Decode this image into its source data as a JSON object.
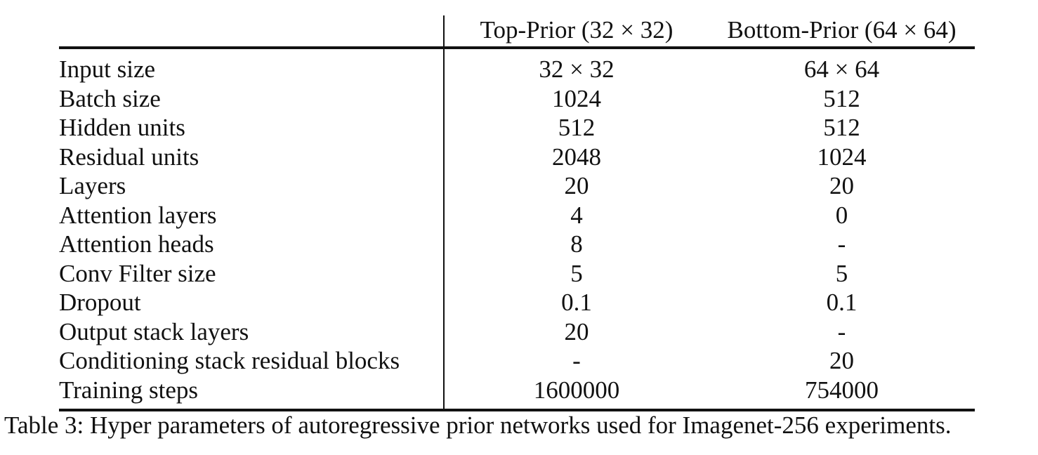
{
  "table": {
    "columns": [
      "",
      "Top-Prior (32 × 32)",
      "Bottom-Prior (64 × 64)"
    ],
    "rows": [
      [
        "Input size",
        "32 × 32",
        "64 × 64"
      ],
      [
        "Batch size",
        "1024",
        "512"
      ],
      [
        "Hidden units",
        "512",
        "512"
      ],
      [
        "Residual units",
        "2048",
        "1024"
      ],
      [
        "Layers",
        "20",
        "20"
      ],
      [
        "Attention layers",
        "4",
        "0"
      ],
      [
        "Attention heads",
        "8",
        "-"
      ],
      [
        "Conv Filter size",
        "5",
        "5"
      ],
      [
        "Dropout",
        "0.1",
        "0.1"
      ],
      [
        "Output stack layers",
        "20",
        "-"
      ],
      [
        "Conditioning stack residual blocks",
        "-",
        "20"
      ],
      [
        "Training steps",
        "1600000",
        "754000"
      ]
    ]
  },
  "caption": "Table 3: Hyper parameters of autoregressive prior networks used for Imagenet-256 experiments."
}
